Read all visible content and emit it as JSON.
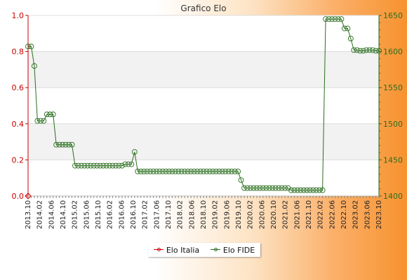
{
  "chart_data": {
    "type": "line",
    "title": "Grafico Elo",
    "xlabel": "",
    "ylabel": "",
    "left_axis": {
      "ylim": [
        0,
        1.0
      ],
      "ticks": [
        "0.0",
        "0.2",
        "0.4",
        "0.6",
        "0.8",
        "1.0"
      ],
      "color": "#cc0000"
    },
    "right_axis": {
      "ylim": [
        1400,
        1650
      ],
      "ticks": [
        "1400",
        "1450",
        "1500",
        "1550",
        "1600",
        "1650"
      ],
      "color": "#2b6e1f"
    },
    "x_tick_labels": [
      "2013.10",
      "2014.02",
      "2014.06",
      "2014.10",
      "2015.02",
      "2015.06",
      "2015.10",
      "2016.02",
      "2016.06",
      "2016.10",
      "2017.02",
      "2017.06",
      "2017.10",
      "2018.02",
      "2018.06",
      "2018.10",
      "2019.02",
      "2019.06",
      "2019.10",
      "2020.02",
      "2020.06",
      "2020.10",
      "2021.02",
      "2021.06",
      "2021.10",
      "2022.02",
      "2022.06",
      "2022.10",
      "2023.02",
      "2023.06",
      "2023.10"
    ],
    "grid": true,
    "grid_bands": true,
    "legend_position": "bottom",
    "series": [
      {
        "name": "Elo Italia",
        "axis": "left",
        "color": "#cc0000",
        "values": [
          0
        ]
      },
      {
        "name": "Elo FIDE",
        "axis": "right",
        "color": "#2b6e1f",
        "values": [
          1607,
          1607,
          1580,
          1504,
          1504,
          1504,
          1513,
          1513,
          1513,
          1471,
          1471,
          1471,
          1471,
          1471,
          1471,
          1442,
          1442,
          1442,
          1442,
          1442,
          1442,
          1442,
          1442,
          1442,
          1442,
          1442,
          1442,
          1442,
          1442,
          1442,
          1442,
          1444,
          1444,
          1444,
          1461,
          1434,
          1434,
          1434,
          1434,
          1434,
          1434,
          1434,
          1434,
          1434,
          1434,
          1434,
          1434,
          1434,
          1434,
          1434,
          1434,
          1434,
          1434,
          1434,
          1434,
          1434,
          1434,
          1434,
          1434,
          1434,
          1434,
          1434,
          1434,
          1434,
          1434,
          1434,
          1434,
          1434,
          1422,
          1411,
          1411,
          1411,
          1411,
          1411,
          1411,
          1411,
          1411,
          1411,
          1411,
          1411,
          1411,
          1411,
          1411,
          1411,
          1408,
          1408,
          1408,
          1408,
          1408,
          1408,
          1408,
          1408,
          1408,
          1408,
          1408,
          1645,
          1645,
          1645,
          1645,
          1645,
          1645,
          1632,
          1632,
          1618,
          1602,
          1602,
          1601,
          1601,
          1602,
          1602,
          1602,
          1601,
          1601
        ]
      }
    ]
  }
}
